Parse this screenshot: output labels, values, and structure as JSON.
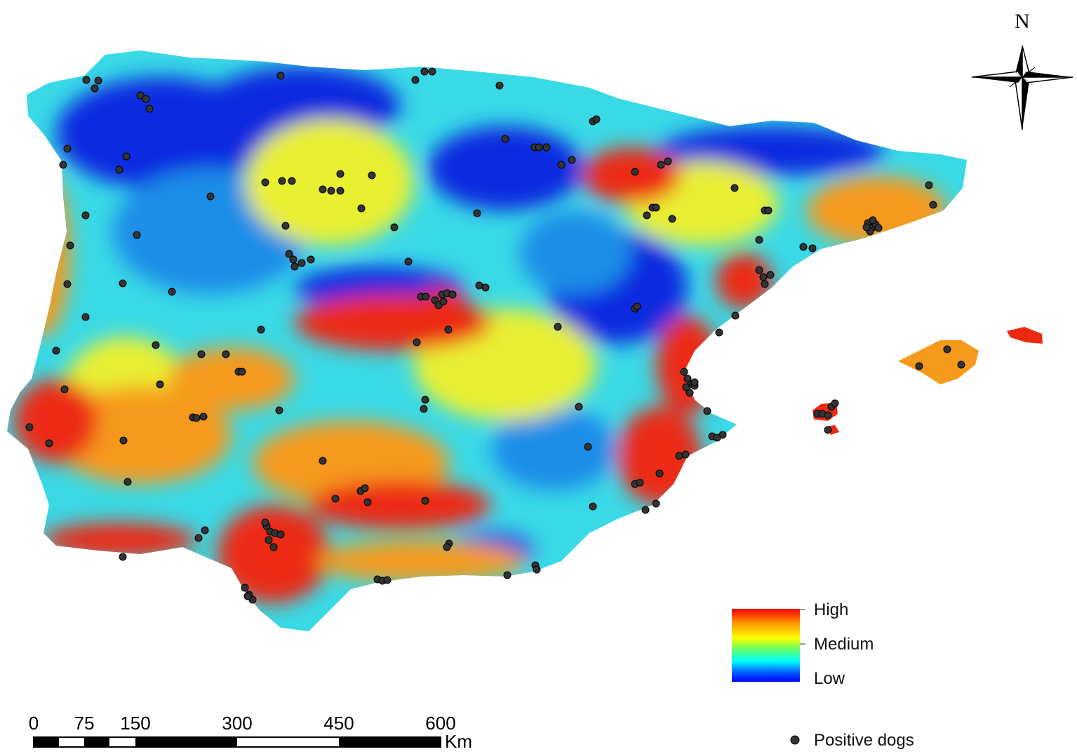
{
  "map": {
    "north_label": "N",
    "legend": {
      "high": "High",
      "medium": "Medium",
      "low": "Low",
      "colors": [
        "#ff0000",
        "#ff8c00",
        "#ffff00",
        "#66ff66",
        "#00ffff",
        "#0066ff",
        "#0000ff"
      ],
      "points_label": "Positive dogs",
      "point_color": "#333333"
    },
    "scale_bar": {
      "ticks": [
        "0",
        "75",
        "150",
        "300",
        "450",
        "600"
      ],
      "unit": "Km"
    },
    "risk_colors": {
      "low": "#0a2ce0",
      "low_mid": "#1d8ee8",
      "mid": "#39d9e6",
      "mid_high": "#e8f033",
      "high": "#f59a1c",
      "very_high": "#ec2a12"
    }
  }
}
